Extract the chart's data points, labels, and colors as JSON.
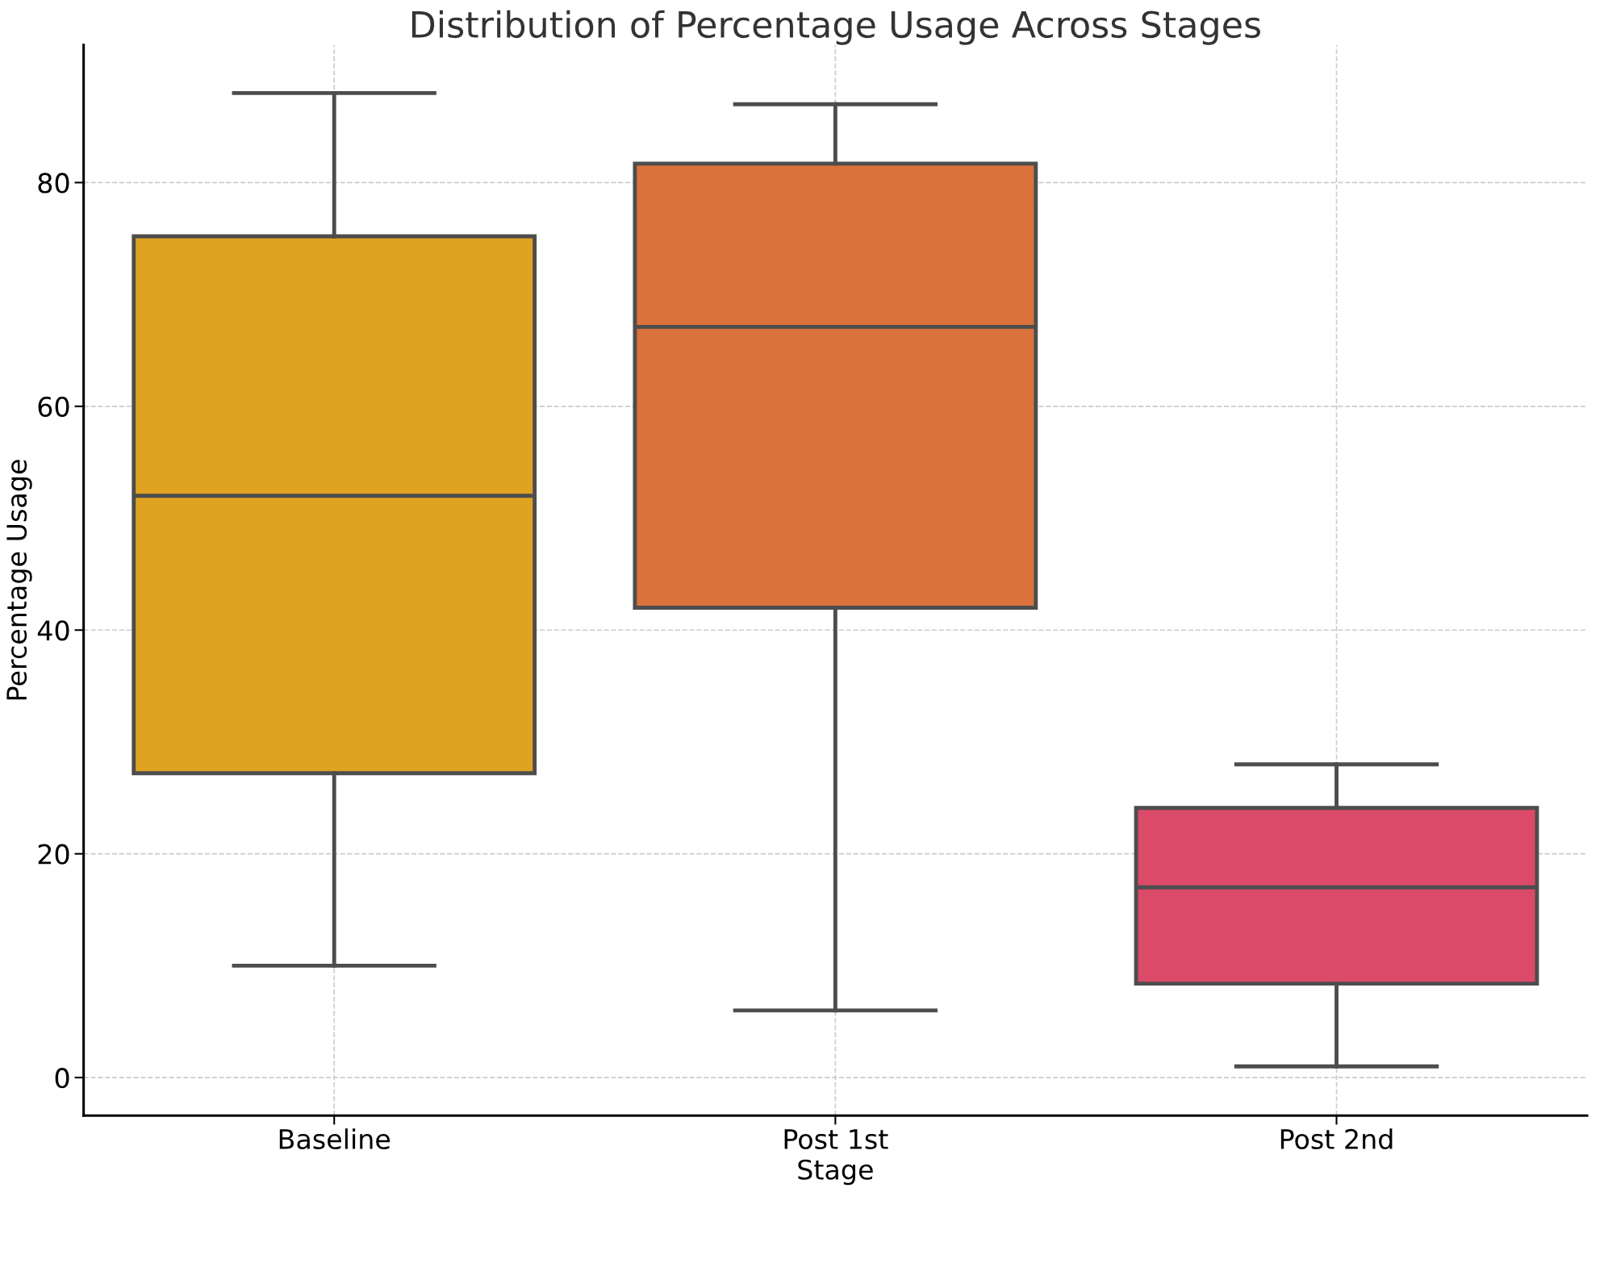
{
  "chart_data": {
    "type": "box",
    "title": "Distribution of Percentage Usage Across Stages",
    "xlabel": "Stage",
    "ylabel": "Percentage Usage",
    "categories": [
      "Baseline",
      "Post 1st",
      "Post 2nd"
    ],
    "colors": [
      "#dfa321",
      "#da723c",
      "#dc4a69"
    ],
    "boxes": [
      {
        "low": 10,
        "q1": 27.2,
        "median": 52,
        "q3": 75.2,
        "high": 88
      },
      {
        "low": 6,
        "q1": 42,
        "median": 67.1,
        "q3": 81.7,
        "high": 87
      },
      {
        "low": 1,
        "q1": 8.4,
        "median": 17,
        "q3": 24.1,
        "high": 28
      }
    ],
    "ylim": [
      -3.4,
      92.3
    ],
    "yticks": [
      0,
      20,
      40,
      60,
      80
    ],
    "grid": true
  }
}
